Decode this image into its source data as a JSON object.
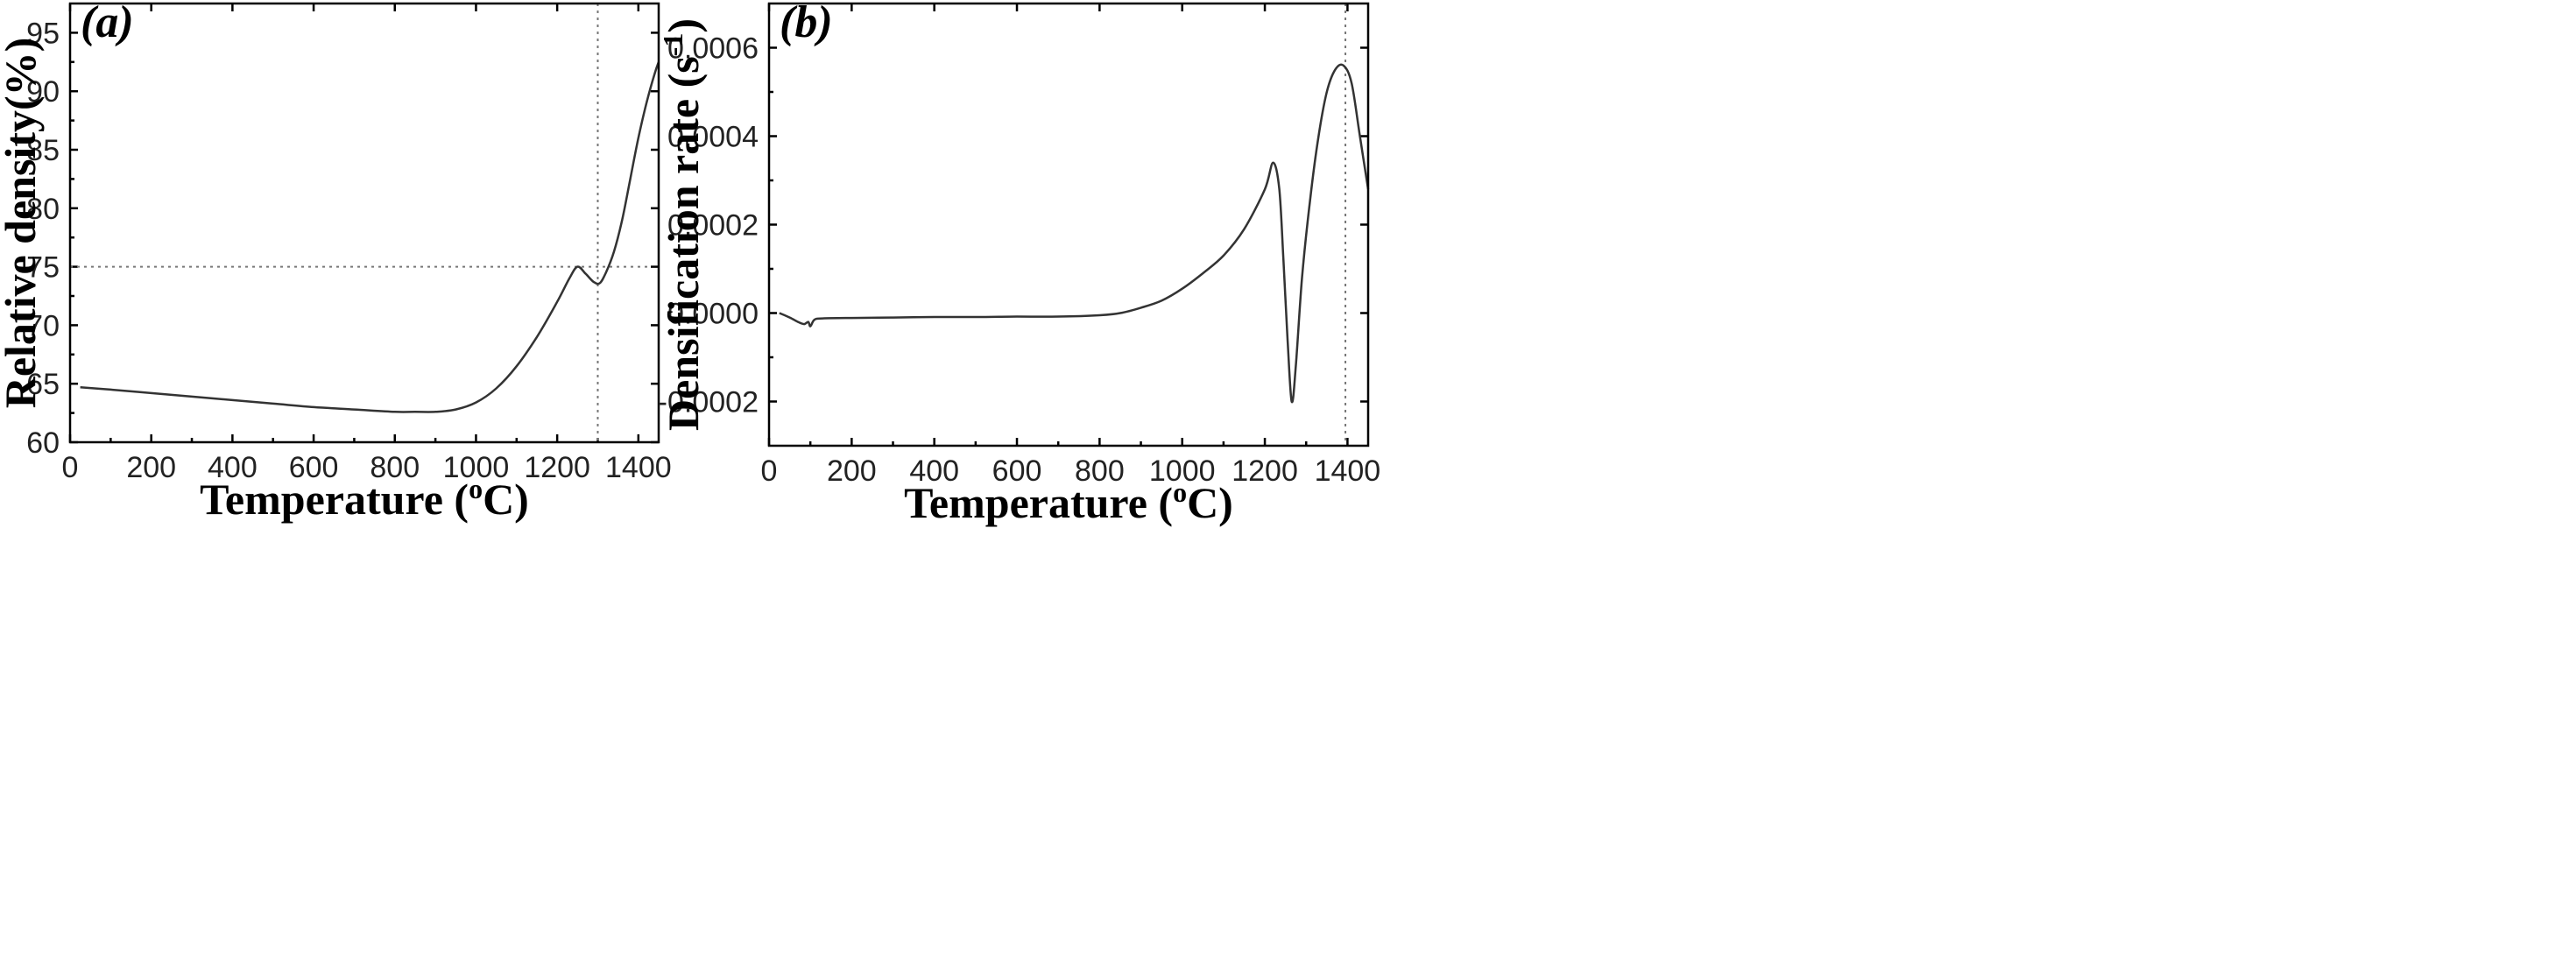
{
  "chart_data": [
    {
      "type": "line",
      "panel_label": "(a)",
      "title": "",
      "xlabel": "Temperature (",
      "xlabel_sup": "o",
      "xlabel_tail": "C)",
      "ylabel": "Relative density(%)",
      "xlim": [
        0,
        1450
      ],
      "ylim": [
        60,
        97.5
      ],
      "xticks": [
        "0",
        "200",
        "400",
        "600",
        "800",
        "1000",
        "1200",
        "1400"
      ],
      "yticks": [
        "60",
        "65",
        "70",
        "75",
        "80",
        "85",
        "90",
        "95"
      ],
      "grid": false,
      "reference_lines": {
        "x": 1300,
        "y": 75
      },
      "series": [
        {
          "x": [
            25,
            100,
            200,
            300,
            400,
            500,
            600,
            700,
            800,
            850,
            900,
            950,
            1000,
            1050,
            1100,
            1150,
            1200,
            1230,
            1250,
            1270,
            1290,
            1305,
            1320,
            1340,
            1360,
            1380,
            1400,
            1420,
            1440,
            1450
          ],
          "y": [
            64.7,
            64.5,
            64.2,
            63.9,
            63.6,
            63.3,
            63.0,
            62.8,
            62.6,
            62.6,
            62.6,
            62.8,
            63.4,
            64.6,
            66.5,
            69.0,
            72.0,
            74.0,
            75.0,
            74.4,
            73.7,
            73.6,
            74.5,
            76.3,
            79.0,
            82.5,
            86.0,
            89.0,
            91.5,
            92.5
          ]
        }
      ]
    },
    {
      "type": "line",
      "panel_label": "(b)",
      "title": "",
      "xlabel": "Temperature (",
      "xlabel_sup": "o",
      "xlabel_tail": "C)",
      "ylabel": "Densification rate (s",
      "ylabel_sup": "-1",
      "ylabel_tail": ")",
      "xlim": [
        0,
        1450
      ],
      "ylim": [
        -0.0003,
        0.0007
      ],
      "xticks": [
        "0",
        "200",
        "400",
        "600",
        "800",
        "1000",
        "1200",
        "1400"
      ],
      "yticks": [
        "-0.0002",
        "0.0000",
        "0.0002",
        "0.0004",
        "0.0006"
      ],
      "yticks_values": [
        -0.0002,
        0.0,
        0.0002,
        0.0004,
        0.0006
      ],
      "grid": false,
      "reference_lines": {
        "x": 1395
      },
      "series": [
        {
          "x": [
            25,
            50,
            70,
            85,
            95,
            100,
            110,
            130,
            200,
            300,
            400,
            500,
            600,
            700,
            800,
            850,
            900,
            950,
            1000,
            1050,
            1100,
            1150,
            1200,
            1220,
            1235,
            1245,
            1255,
            1265,
            1275,
            1290,
            1310,
            1330,
            1350,
            1370,
            1390,
            1410,
            1430,
            1450
          ],
          "y": [
            0.0,
            -1e-05,
            -2e-05,
            -2.5e-05,
            -2e-05,
            -3e-05,
            -1.5e-05,
            -1.2e-05,
            -1.1e-05,
            -1e-05,
            -9e-06,
            -9e-06,
            -8e-06,
            -8e-06,
            -5e-06,
            0.0,
            1.2e-05,
            2.8e-05,
            5.5e-05,
            9e-05,
            0.00013,
            0.00019,
            0.00028,
            0.00034,
            0.00028,
            0.00012,
            -6e-05,
            -0.0002,
            -0.00012,
            8e-05,
            0.00026,
            0.0004,
            0.0005,
            0.00055,
            0.00056,
            0.00052,
            0.0004,
            0.00028
          ]
        }
      ]
    }
  ]
}
